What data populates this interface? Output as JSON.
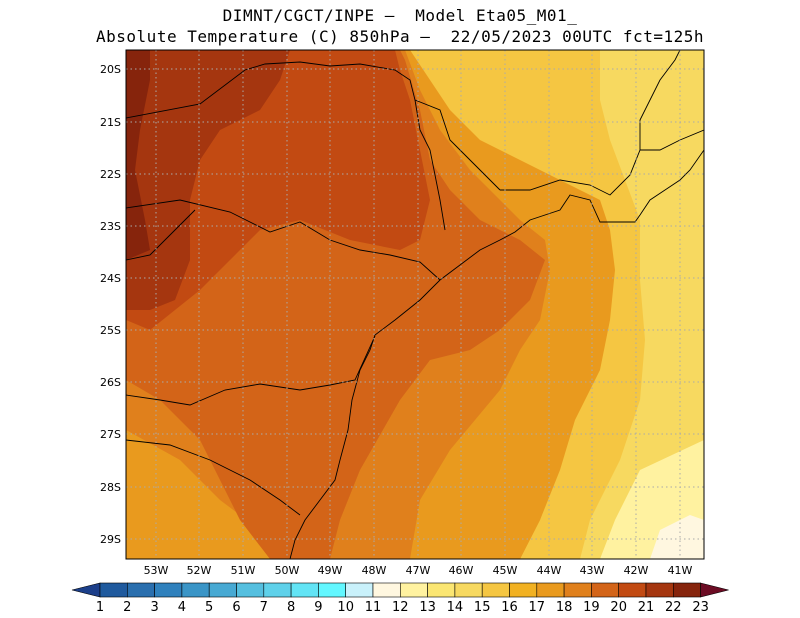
{
  "title_line1": "DIMNT/CGCT/INPE –  Model Eta05_M01_",
  "title_line2": "Absolute Temperature (C) 850hPa –  22/05/2023 00UTC fct=125h",
  "lat_labels": [
    "20S",
    "21S",
    "22S",
    "23S",
    "24S",
    "25S",
    "26S",
    "27S",
    "28S",
    "29S"
  ],
  "lon_labels": [
    "53W",
    "52W",
    "51W",
    "50W",
    "49W",
    "48W",
    "47W",
    "46W",
    "45W",
    "44W",
    "43W",
    "42W",
    "41W"
  ],
  "colorbar": {
    "labels": [
      "1",
      "2",
      "3",
      "4",
      "5",
      "6",
      "7",
      "8",
      "9",
      "10",
      "11",
      "12",
      "13",
      "14",
      "15",
      "16",
      "17",
      "18",
      "19",
      "20",
      "21",
      "22",
      "23"
    ],
    "colors": [
      "#1c3f8a",
      "#1f5a9e",
      "#2a6fae",
      "#2f81bd",
      "#3a95c7",
      "#47a9d3",
      "#55bfdf",
      "#5fd1ea",
      "#62e4f5",
      "#62f7ff",
      "#c9f1fb",
      "#fff7e0",
      "#fff2a0",
      "#fbe672",
      "#f7d960",
      "#f5c642",
      "#f1b122",
      "#e99a1e",
      "#e0801c",
      "#d36418",
      "#c24a12",
      "#a5360f",
      "#86240c",
      "#6c0c24"
    ]
  },
  "field_colors": {
    "t14": "#f7d960",
    "t15": "#f5c642",
    "t16": "#f1b122",
    "t17": "#e99a1e",
    "t18": "#e0801c",
    "t19": "#d36418",
    "t20": "#c24a12",
    "t21": "#a5360f",
    "t22": "#86240c",
    "t12": "#fff2a0",
    "t11": "#fff7e0"
  }
}
